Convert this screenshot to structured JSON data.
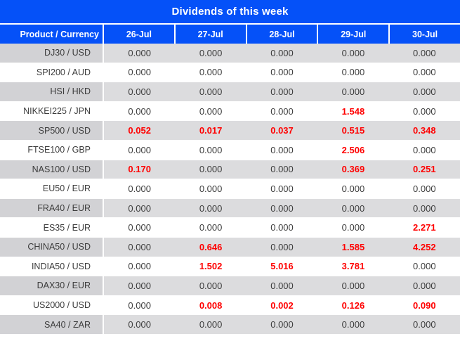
{
  "title": "Dividends of this week",
  "colors": {
    "header_blue": "#0551f8",
    "header_text": "#ffffff",
    "divider_white": "#ffffff",
    "row_gray_label": "#d2d2d5",
    "row_gray_value": "#dcdcde",
    "row_white": "#ffffff",
    "text_dark": "#3c3c3c",
    "highlight_red": "#ff0000"
  },
  "table": {
    "columns": [
      "Product / Currency",
      "26-Jul",
      "27-Jul",
      "28-Jul",
      "29-Jul",
      "30-Jul"
    ],
    "rows": [
      {
        "product": "DJ30 / USD",
        "values": [
          "0.000",
          "0.000",
          "0.000",
          "0.000",
          "0.000"
        ],
        "red": [
          false,
          false,
          false,
          false,
          false
        ]
      },
      {
        "product": "SPI200 / AUD",
        "values": [
          "0.000",
          "0.000",
          "0.000",
          "0.000",
          "0.000"
        ],
        "red": [
          false,
          false,
          false,
          false,
          false
        ]
      },
      {
        "product": "HSI / HKD",
        "values": [
          "0.000",
          "0.000",
          "0.000",
          "0.000",
          "0.000"
        ],
        "red": [
          false,
          false,
          false,
          false,
          false
        ]
      },
      {
        "product": "NIKKEI225 / JPN",
        "values": [
          "0.000",
          "0.000",
          "0.000",
          "1.548",
          "0.000"
        ],
        "red": [
          false,
          false,
          false,
          true,
          false
        ]
      },
      {
        "product": "SP500 / USD",
        "values": [
          "0.052",
          "0.017",
          "0.037",
          "0.515",
          "0.348"
        ],
        "red": [
          true,
          true,
          true,
          true,
          true
        ]
      },
      {
        "product": "FTSE100 / GBP",
        "values": [
          "0.000",
          "0.000",
          "0.000",
          "2.506",
          "0.000"
        ],
        "red": [
          false,
          false,
          false,
          true,
          false
        ]
      },
      {
        "product": "NAS100 / USD",
        "values": [
          "0.170",
          "0.000",
          "0.000",
          "0.369",
          "0.251"
        ],
        "red": [
          true,
          false,
          false,
          true,
          true
        ]
      },
      {
        "product": "EU50 / EUR",
        "values": [
          "0.000",
          "0.000",
          "0.000",
          "0.000",
          "0.000"
        ],
        "red": [
          false,
          false,
          false,
          false,
          false
        ]
      },
      {
        "product": "FRA40 / EUR",
        "values": [
          "0.000",
          "0.000",
          "0.000",
          "0.000",
          "0.000"
        ],
        "red": [
          false,
          false,
          false,
          false,
          false
        ]
      },
      {
        "product": "ES35 / EUR",
        "values": [
          "0.000",
          "0.000",
          "0.000",
          "0.000",
          "2.271"
        ],
        "red": [
          false,
          false,
          false,
          false,
          true
        ]
      },
      {
        "product": "CHINA50 / USD",
        "values": [
          "0.000",
          "0.646",
          "0.000",
          "1.585",
          "4.252"
        ],
        "red": [
          false,
          true,
          false,
          true,
          true
        ]
      },
      {
        "product": "INDIA50 / USD",
        "values": [
          "0.000",
          "1.502",
          "5.016",
          "3.781",
          "0.000"
        ],
        "red": [
          false,
          true,
          true,
          true,
          false
        ]
      },
      {
        "product": "DAX30 / EUR",
        "values": [
          "0.000",
          "0.000",
          "0.000",
          "0.000",
          "0.000"
        ],
        "red": [
          false,
          false,
          false,
          false,
          false
        ]
      },
      {
        "product": "US2000 / USD",
        "values": [
          "0.000",
          "0.008",
          "0.002",
          "0.126",
          "0.090"
        ],
        "red": [
          false,
          true,
          true,
          true,
          true
        ]
      },
      {
        "product": "SA40 / ZAR",
        "values": [
          "0.000",
          "0.000",
          "0.000",
          "0.000",
          "0.000"
        ],
        "red": [
          false,
          false,
          false,
          false,
          false
        ]
      }
    ]
  }
}
